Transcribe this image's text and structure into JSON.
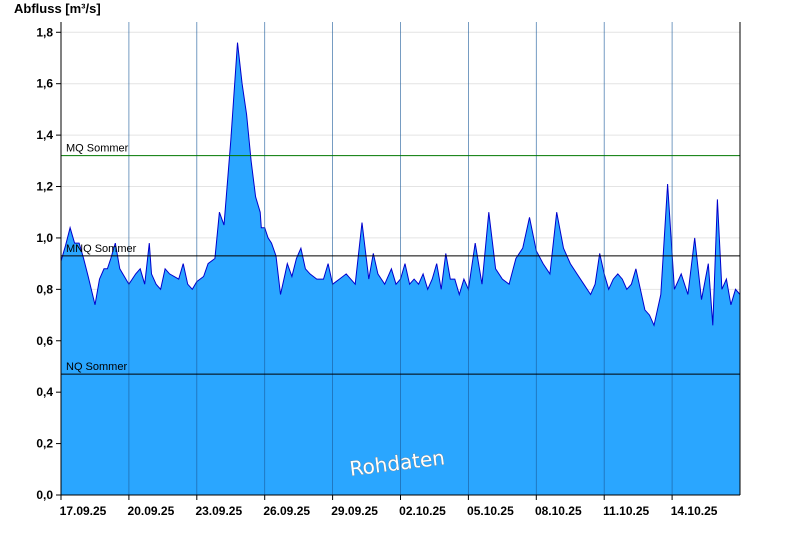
{
  "chart_data": {
    "type": "area",
    "title": "",
    "ylabel": "Abfluss [m³/s]",
    "xlabel": "",
    "ylim": [
      0,
      1.84
    ],
    "xlim": [
      0,
      30
    ],
    "yticks": [
      0,
      0.2,
      0.4,
      0.6,
      0.8,
      1.0,
      1.2,
      1.4,
      1.6,
      1.8
    ],
    "ytick_labels": [
      "0,0",
      "0,2",
      "0,4",
      "0,6",
      "0,8",
      "1,0",
      "1,2",
      "1,4",
      "1,6",
      "1,8"
    ],
    "xticks": [
      0,
      3,
      6,
      9,
      12,
      15,
      18,
      21,
      24,
      27
    ],
    "xtick_labels": [
      "17.09.25",
      "20.09.25",
      "23.09.25",
      "26.09.25",
      "29.09.25",
      "02.10.25",
      "05.10.25",
      "08.10.25",
      "11.10.25",
      "14.10.25"
    ],
    "grid": true,
    "colors": {
      "fill": "#2aa6ff",
      "line": "#0000cc",
      "mq": "#007700",
      "ref": "#000000"
    },
    "reference_lines": [
      {
        "label": "MQ Sommer",
        "value": 1.32
      },
      {
        "label": "MNQ Sommer",
        "value": 0.93
      },
      {
        "label": "NQ Sommer",
        "value": 0.47
      }
    ],
    "watermark": "Rohdaten",
    "series": [
      {
        "x": [
          0,
          0.2,
          0.4,
          0.6,
          0.8,
          0.9,
          1.0,
          1.2,
          1.5,
          1.7,
          1.9,
          2.05,
          2.2,
          2.4,
          2.6,
          3.0,
          3.3,
          3.5,
          3.7,
          3.9,
          4.0,
          4.2,
          4.4,
          4.6,
          4.8,
          5.2,
          5.4,
          5.6,
          5.8,
          6.0,
          6.3,
          6.5,
          6.8,
          7.0,
          7.2,
          7.5,
          7.8,
          8.0,
          8.2,
          8.4,
          8.6,
          8.8,
          8.85,
          9.0,
          9.15,
          9.3,
          9.5,
          9.7,
          9.9,
          10.0,
          10.2,
          10.4,
          10.6,
          10.8,
          11.0,
          11.3,
          11.6,
          11.8,
          12.0,
          12.3,
          12.6,
          12.8,
          13.0,
          13.3,
          13.6,
          13.8,
          14.0,
          14.3,
          14.6,
          14.8,
          15.0,
          15.2,
          15.4,
          15.6,
          15.8,
          16.0,
          16.2,
          16.4,
          16.6,
          16.8,
          17.0,
          17.2,
          17.4,
          17.6,
          17.8,
          18.0,
          18.3,
          18.6,
          18.9,
          19.2,
          19.5,
          19.8,
          20.1,
          20.4,
          20.7,
          21.0,
          21.3,
          21.6,
          21.9,
          22.2,
          22.5,
          22.8,
          23.1,
          23.4,
          23.6,
          23.8,
          24.0,
          24.2,
          24.4,
          24.6,
          24.8,
          25.0,
          25.2,
          25.4,
          25.6,
          25.8,
          26.0,
          26.2,
          26.5,
          26.8,
          27.1,
          27.4,
          27.7,
          28.0,
          28.3,
          28.6,
          28.8,
          29.0,
          29.2,
          29.4,
          29.6,
          29.8,
          30.0
        ],
        "y": [
          0.91,
          0.97,
          1.04,
          0.98,
          0.98,
          0.95,
          0.92,
          0.85,
          0.74,
          0.84,
          0.88,
          0.88,
          0.92,
          0.98,
          0.88,
          0.82,
          0.86,
          0.88,
          0.82,
          0.98,
          0.86,
          0.82,
          0.8,
          0.88,
          0.86,
          0.84,
          0.9,
          0.82,
          0.8,
          0.83,
          0.85,
          0.9,
          0.92,
          1.1,
          1.05,
          1.38,
          1.76,
          1.6,
          1.48,
          1.3,
          1.16,
          1.1,
          1.04,
          1.04,
          1.0,
          0.98,
          0.93,
          0.78,
          0.86,
          0.9,
          0.85,
          0.92,
          0.96,
          0.88,
          0.86,
          0.84,
          0.84,
          0.9,
          0.82,
          0.84,
          0.86,
          0.84,
          0.82,
          1.06,
          0.84,
          0.94,
          0.86,
          0.82,
          0.88,
          0.82,
          0.84,
          0.9,
          0.82,
          0.84,
          0.82,
          0.86,
          0.8,
          0.84,
          0.9,
          0.8,
          0.94,
          0.84,
          0.84,
          0.78,
          0.84,
          0.8,
          0.98,
          0.82,
          1.1,
          0.88,
          0.84,
          0.82,
          0.92,
          0.96,
          1.08,
          0.95,
          0.9,
          0.86,
          1.1,
          0.96,
          0.9,
          0.86,
          0.82,
          0.78,
          0.82,
          0.94,
          0.86,
          0.8,
          0.84,
          0.86,
          0.84,
          0.8,
          0.82,
          0.88,
          0.8,
          0.72,
          0.7,
          0.66,
          0.78,
          1.21,
          0.8,
          0.86,
          0.78,
          1.0,
          0.76,
          0.9,
          0.66,
          1.15,
          0.8,
          0.84,
          0.74,
          0.8,
          0.78
        ]
      }
    ]
  }
}
